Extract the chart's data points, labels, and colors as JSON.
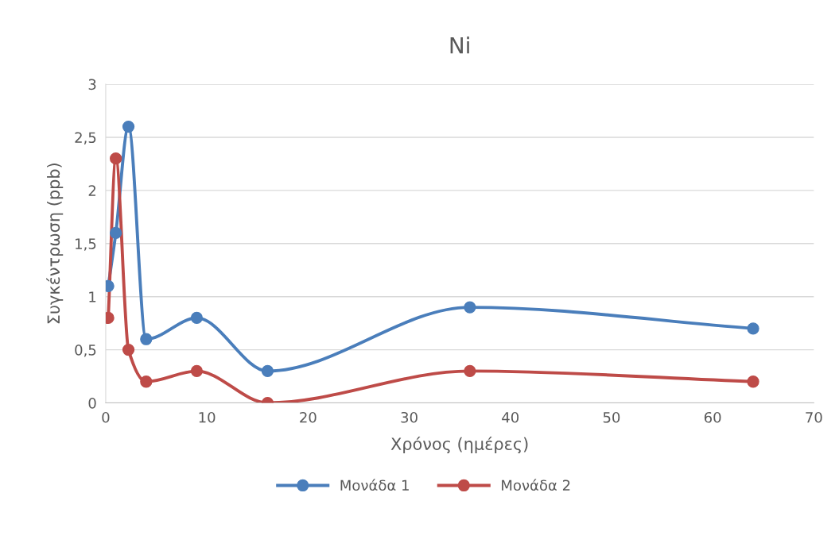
{
  "chart_data": {
    "type": "line",
    "title": "Ni",
    "xlabel": "Χρόνος (ημέρες)",
    "ylabel": "Συγκέντρωση (ppb)",
    "x": [
      0.25,
      1,
      2.25,
      4,
      9,
      16,
      36,
      64
    ],
    "series": [
      {
        "name": "Μονάδα 1",
        "color": "#4a7ebb",
        "values": [
          1.1,
          1.6,
          2.6,
          0.6,
          0.8,
          0.3,
          0.9,
          0.7
        ]
      },
      {
        "name": "Μονάδα 2",
        "color": "#be4b48",
        "values": [
          0.8,
          2.3,
          0.5,
          0.2,
          0.3,
          0,
          0.3,
          0.2
        ]
      }
    ],
    "xlim": [
      0,
      70
    ],
    "xticks": [
      0,
      10,
      20,
      30,
      40,
      50,
      60,
      70
    ],
    "ylim": [
      0,
      3
    ],
    "yticks": [
      0,
      {
        "value": 0.5,
        "label": "0,5"
      },
      1,
      {
        "value": 1.5,
        "label": "1,5"
      },
      2,
      {
        "value": 2.5,
        "label": "2,5"
      },
      3
    ],
    "grid": "y",
    "legend": "bottom",
    "marker": "circle",
    "line_style": "solid"
  }
}
